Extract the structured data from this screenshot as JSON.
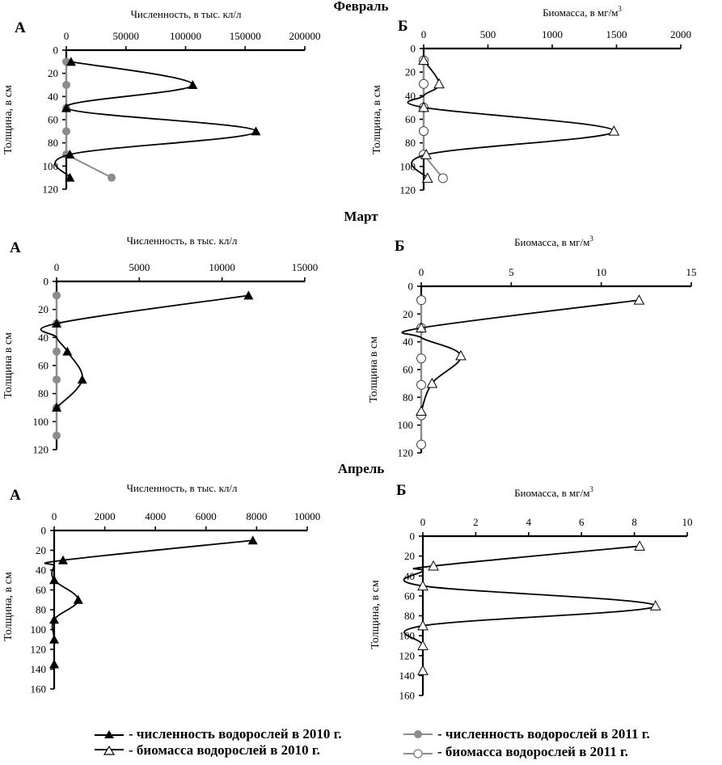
{
  "months": [
    "Февраль",
    "Март",
    "Апрель"
  ],
  "legend": [
    {
      "key": "count2010",
      "label": "- численность водорослей в 2010 г."
    },
    {
      "key": "bio2010",
      "label": "- биомасса водорослей в 2010 г."
    },
    {
      "key": "count2011",
      "label": "- численность водорослей в 2011 г."
    },
    {
      "key": "bio2011",
      "label": "- биомасса водорослей в 2011 г."
    }
  ],
  "colors": {
    "series2010": "#000000",
    "series2011": "#8c8c8c",
    "marker2011_fill": "#8c8c8c",
    "open_fill": "#ffffff"
  },
  "chart_data": [
    {
      "id": "feb-A",
      "type": "line",
      "month": "Февраль",
      "panel_letter": "А",
      "title": "Численность, в тыс. кл/л",
      "xlabel": "Численность, в тыс. кл/л",
      "ylabel": "Толщина, в см",
      "xlim": [
        0,
        200000
      ],
      "xticks": [
        0,
        50000,
        100000,
        150000,
        200000
      ],
      "ylim": [
        0,
        120
      ],
      "yticks": [
        0,
        20,
        40,
        60,
        80,
        100,
        120
      ],
      "y_inverted": true,
      "grid": false,
      "series": [
        {
          "name": "численность водорослей в 2010 г.",
          "marker": "filled-triangle",
          "color": "#000000",
          "points": [
            {
              "depth": 10,
              "value": 4000
            },
            {
              "depth": 30,
              "value": 106000
            },
            {
              "depth": 50,
              "value": 0
            },
            {
              "depth": 70,
              "value": 159000
            },
            {
              "depth": 90,
              "value": 3000
            },
            {
              "depth": 110,
              "value": 3000
            }
          ]
        },
        {
          "name": "численность водорослей в 2011 г.",
          "marker": "filled-circle",
          "color": "#8c8c8c",
          "points": [
            {
              "depth": 10,
              "value": 0
            },
            {
              "depth": 30,
              "value": 0
            },
            {
              "depth": 50,
              "value": 0
            },
            {
              "depth": 70,
              "value": 0
            },
            {
              "depth": 90,
              "value": 0
            },
            {
              "depth": 110,
              "value": 38000
            }
          ]
        }
      ]
    },
    {
      "id": "feb-B",
      "type": "line",
      "month": "Февраль",
      "panel_letter": "Б",
      "title": "Биомасса, в мг/м³",
      "xlabel": "Биомасса, в мг/м³",
      "ylabel": "Толщина, в см",
      "xlim": [
        0,
        2000
      ],
      "xticks": [
        0,
        500,
        1000,
        1500,
        2000
      ],
      "ylim": [
        0,
        120
      ],
      "yticks": [
        0,
        20,
        40,
        60,
        80,
        100,
        120
      ],
      "y_inverted": true,
      "grid": false,
      "series": [
        {
          "name": "биомасса водорослей в 2010 г.",
          "marker": "open-triangle",
          "color": "#000000",
          "points": [
            {
              "depth": 10,
              "value": 0
            },
            {
              "depth": 30,
              "value": 120
            },
            {
              "depth": 40,
              "value": 0
            },
            {
              "depth": 50,
              "value": 0
            },
            {
              "depth": 70,
              "value": 1480
            },
            {
              "depth": 90,
              "value": 20
            },
            {
              "depth": 110,
              "value": 30
            }
          ]
        },
        {
          "name": "биомасса водорослей в 2011 г.",
          "marker": "open-circle",
          "color": "#8c8c8c",
          "points": [
            {
              "depth": 10,
              "value": 0
            },
            {
              "depth": 30,
              "value": 0
            },
            {
              "depth": 50,
              "value": 0
            },
            {
              "depth": 70,
              "value": 0
            },
            {
              "depth": 90,
              "value": 0
            },
            {
              "depth": 110,
              "value": 150
            }
          ]
        }
      ]
    },
    {
      "id": "mar-A",
      "type": "line",
      "month": "Март",
      "panel_letter": "А",
      "title": "Численность, в тыс. кл/л",
      "xlabel": "Численность, в тыс. кл/л",
      "ylabel": "Толщина в см",
      "xlim": [
        0,
        15000
      ],
      "xticks": [
        0,
        5000,
        10000,
        15000
      ],
      "ylim": [
        0,
        120
      ],
      "yticks": [
        0,
        20,
        40,
        60,
        80,
        100,
        120
      ],
      "y_inverted": true,
      "grid": false,
      "series": [
        {
          "name": "численность водорослей в 2010 г.",
          "marker": "filled-triangle",
          "color": "#000000",
          "points": [
            {
              "depth": 10,
              "value": 11600
            },
            {
              "depth": 30,
              "value": 0
            },
            {
              "depth": 40,
              "value": 0
            },
            {
              "depth": 50,
              "value": 650
            },
            {
              "depth": 70,
              "value": 1550
            },
            {
              "depth": 90,
              "value": 0
            }
          ]
        },
        {
          "name": "численность водорослей в 2011 г.",
          "marker": "filled-circle",
          "color": "#8c8c8c",
          "points": [
            {
              "depth": 10,
              "value": 0
            },
            {
              "depth": 30,
              "value": 0
            },
            {
              "depth": 50,
              "value": 0
            },
            {
              "depth": 70,
              "value": 0
            },
            {
              "depth": 90,
              "value": 0
            },
            {
              "depth": 110,
              "value": 0
            }
          ]
        }
      ]
    },
    {
      "id": "mar-B",
      "type": "line",
      "month": "Март",
      "panel_letter": "Б",
      "title": "Биомасса, в мг/м³",
      "xlabel": "Биомасса, в мг/м³",
      "ylabel": "Толщина в см",
      "xlim": [
        0,
        15
      ],
      "xticks": [
        0,
        5,
        10,
        15
      ],
      "ylim": [
        0,
        120
      ],
      "yticks": [
        0,
        20,
        40,
        60,
        80,
        100,
        120
      ],
      "y_inverted": true,
      "grid": false,
      "series": [
        {
          "name": "биомасса водорослей в 2010 г.",
          "marker": "open-triangle",
          "color": "#000000",
          "points": [
            {
              "depth": 10,
              "value": 12.1
            },
            {
              "depth": 30,
              "value": 0
            },
            {
              "depth": 37,
              "value": 0
            },
            {
              "depth": 50,
              "value": 2.2
            },
            {
              "depth": 70,
              "value": 0.6
            },
            {
              "depth": 90,
              "value": 0
            }
          ]
        },
        {
          "name": "биомасса водорослей в 2011 г.",
          "marker": "open-circle",
          "color": "#8c8c8c",
          "points": [
            {
              "depth": 10,
              "value": 0
            },
            {
              "depth": 30,
              "value": 0
            },
            {
              "depth": 52,
              "value": 0
            },
            {
              "depth": 71,
              "value": 0
            },
            {
              "depth": 93,
              "value": 0
            },
            {
              "depth": 114,
              "value": 0
            }
          ]
        }
      ]
    },
    {
      "id": "apr-A",
      "type": "line",
      "month": "Апрель",
      "panel_letter": "А",
      "title": "Численность, в тыс. кл/л",
      "xlabel": "Численность, в тыс. кл/л",
      "ylabel": "Толщина, в см",
      "xlim": [
        0,
        10000
      ],
      "xticks": [
        0,
        2000,
        4000,
        6000,
        8000,
        10000
      ],
      "ylim": [
        0,
        160
      ],
      "yticks": [
        0,
        20,
        40,
        60,
        80,
        100,
        120,
        140,
        160
      ],
      "y_inverted": true,
      "grid": false,
      "series": [
        {
          "name": "численность водорослей в 2010 г.",
          "marker": "filled-triangle",
          "color": "#000000",
          "points": [
            {
              "depth": 10,
              "value": 7850
            },
            {
              "depth": 30,
              "value": 350
            },
            {
              "depth": 36,
              "value": 0
            },
            {
              "depth": 50,
              "value": 0
            },
            {
              "depth": 70,
              "value": 950
            },
            {
              "depth": 90,
              "value": 0
            },
            {
              "depth": 110,
              "value": 0
            },
            {
              "depth": 135,
              "value": 0
            }
          ]
        }
      ]
    },
    {
      "id": "apr-B",
      "type": "line",
      "month": "Апрель",
      "panel_letter": "Б",
      "title": "Биомасса, в мг/м³",
      "xlabel": "Биомасса, в мг/м³",
      "ylabel": "Толщина,  в см",
      "xlim": [
        0,
        10
      ],
      "xticks": [
        0,
        2,
        4,
        6,
        8,
        10
      ],
      "ylim": [
        0,
        160
      ],
      "yticks": [
        0,
        20,
        40,
        60,
        80,
        100,
        120,
        140,
        160
      ],
      "y_inverted": true,
      "grid": false,
      "series": [
        {
          "name": "биомасса водорослей в 2010 г.",
          "marker": "open-triangle",
          "color": "#000000",
          "points": [
            {
              "depth": 10,
              "value": 8.2
            },
            {
              "depth": 30,
              "value": 0.4
            },
            {
              "depth": 35,
              "value": 0
            },
            {
              "depth": 50,
              "value": 0
            },
            {
              "depth": 70,
              "value": 8.8
            },
            {
              "depth": 90,
              "value": 0
            },
            {
              "depth": 110,
              "value": 0
            },
            {
              "depth": 135,
              "value": 0
            }
          ]
        }
      ]
    }
  ]
}
